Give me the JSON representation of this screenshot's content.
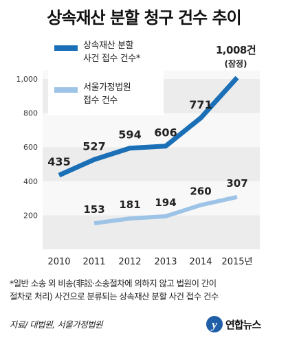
{
  "title": "상속재산 분할 청구 건수 추이",
  "chart_data": {
    "type": "line",
    "categories": [
      "2010",
      "2011",
      "2012",
      "2013",
      "2014",
      "2015년"
    ],
    "ylim": [
      0,
      1050
    ],
    "yticks": [
      200,
      400,
      600,
      800,
      "1,000"
    ],
    "grid": "horizontal bands",
    "legend_position": "top-left",
    "series": [
      {
        "name": "상속재산 분할\n사건 접수 건수*",
        "color": "#1a6fb7",
        "values": [
          435,
          527,
          594,
          606,
          771,
          1008
        ],
        "labels": [
          "435",
          "527",
          "594",
          "606",
          "771",
          "1,008건"
        ],
        "last_note": "(잠정)"
      },
      {
        "name": "서울가정법원\n접수 건수",
        "color": "#9dc3e6",
        "values": [
          null,
          153,
          181,
          194,
          260,
          307
        ],
        "labels": [
          "",
          "153",
          "181",
          "194",
          "260",
          "307"
        ]
      }
    ]
  },
  "footnote": "*일반 소송 외 비송(非訟·소송절차에 의하지 않고 법원이 간이\n절차로 처리) 사건으로 분류되는 상속재산 분할 사건 접수 건수",
  "source": "자료/ 대법원, 서울가정법원",
  "logo_text": "연합뉴스"
}
